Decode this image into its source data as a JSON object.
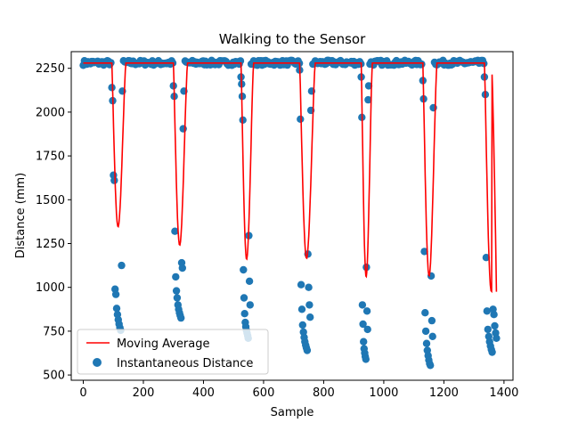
{
  "chart_data": {
    "type": "scatter",
    "title": "Walking to the Sensor",
    "xlabel": "Sample",
    "ylabel": "Distance (mm)",
    "xlim": [
      -40,
      1430
    ],
    "ylim": [
      470,
      2345
    ],
    "xticks": [
      0,
      200,
      400,
      600,
      800,
      1000,
      1200,
      1400
    ],
    "yticks": [
      500,
      750,
      1000,
      1250,
      1500,
      1750,
      2000,
      2250
    ],
    "grid": false,
    "legend_position": "lower-left",
    "legend": {
      "line_label": "Moving Average",
      "scatter_label": "Instantaneous Distance"
    },
    "colors": {
      "line": "#ff0000",
      "scatter": "#1f77b4"
    },
    "baseline": 2280,
    "dips": [
      {
        "start": 95,
        "end": 130,
        "avg_min": 1345,
        "pts": [
          2140,
          2065,
          1640,
          1610,
          990,
          960,
          880,
          845,
          815,
          790,
          770,
          755,
          1125,
          2120
        ]
      },
      {
        "start": 300,
        "end": 335,
        "avg_min": 1240,
        "pts": [
          2150,
          2090,
          1320,
          1060,
          980,
          940,
          900,
          875,
          855,
          840,
          825,
          1140,
          1110,
          1905,
          2120
        ]
      },
      {
        "start": 525,
        "end": 555,
        "avg_min": 1160,
        "pts": [
          2200,
          2160,
          2090,
          1955,
          1100,
          940,
          850,
          800,
          775,
          755,
          740,
          725,
          710,
          1295,
          1035,
          900
        ]
      },
      {
        "start": 720,
        "end": 760,
        "avg_min": 1165,
        "pts": [
          2240,
          1960,
          1015,
          875,
          785,
          745,
          715,
          690,
          670,
          655,
          640,
          1190,
          1000,
          900,
          830,
          2010,
          2120
        ]
      },
      {
        "start": 925,
        "end": 950,
        "avg_min": 1060,
        "pts": [
          2200,
          1970,
          900,
          790,
          690,
          650,
          625,
          605,
          590,
          1115,
          865,
          760,
          2070,
          2150
        ]
      },
      {
        "start": 1130,
        "end": 1165,
        "avg_min": 1065,
        "pts": [
          2180,
          2075,
          1205,
          855,
          750,
          680,
          640,
          610,
          585,
          565,
          555,
          1065,
          810,
          720,
          2025
        ]
      },
      {
        "start": 1335,
        "end": 1375,
        "avg_min": 975,
        "pts": [
          2200,
          2100,
          1170,
          865,
          760,
          720,
          690,
          665,
          645,
          630,
          875,
          845,
          780,
          740,
          710
        ]
      }
    ],
    "last_sample": 1375,
    "last_avg": 975
  }
}
